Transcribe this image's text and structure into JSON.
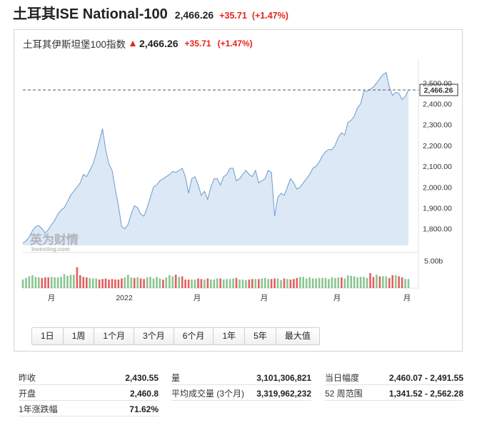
{
  "header": {
    "title": "土耳其ISE National-100",
    "price": "2,466.26",
    "change": "+35.71",
    "change_pct": "(+1.47%)"
  },
  "chart_header": {
    "name": "土耳其伊斯坦堡100指数",
    "price": "2,466.26",
    "change": "+35.71",
    "change_pct": "(+1.47%)"
  },
  "watermark": {
    "cn": "英为财情",
    "en": "Investing.com"
  },
  "colors": {
    "up": "#e8221b",
    "line": "#6b9bd0",
    "area": "#dce8f5",
    "vol_green": "#8ac492",
    "vol_red": "#e15f5f"
  },
  "chart_data": {
    "type": "area",
    "current_value": 2466.26,
    "current_label": "2,466.26",
    "yticks": [
      "2,500.00",
      "2,400.00",
      "2,300.00",
      "2,200.00",
      "2,100.00",
      "2,000.00",
      "1,900.00",
      "1,800.00"
    ],
    "ytick_values": [
      2500,
      2400,
      2300,
      2200,
      2100,
      2000,
      1900,
      1800
    ],
    "ylim": [
      1720,
      2590
    ],
    "xticks": [
      "月",
      "2022",
      "月",
      "月",
      "月",
      "月"
    ],
    "volume_label": "5.00b",
    "volume_label_value": 5.0,
    "values": [
      1730,
      1742,
      1760,
      1790,
      1810,
      1815,
      1800,
      1780,
      1795,
      1820,
      1840,
      1870,
      1890,
      1900,
      1930,
      1960,
      1980,
      2000,
      2020,
      2060,
      2050,
      2080,
      2110,
      2160,
      2220,
      2280,
      2180,
      2110,
      2080,
      1990,
      1910,
      1810,
      1800,
      1820,
      1870,
      1910,
      1900,
      1870,
      1860,
      1900,
      1950,
      2000,
      2010,
      2030,
      2040,
      2050,
      2060,
      2075,
      2070,
      2080,
      2090,
      2050,
      1970,
      2040,
      2050,
      2010,
      1960,
      1980,
      1940,
      2000,
      2040,
      2040,
      2010,
      2050,
      2060,
      2090,
      2090,
      2030,
      2040,
      2060,
      2080,
      2060,
      2050,
      2080,
      2020,
      2030,
      2040,
      2080,
      2070,
      1860,
      1950,
      1970,
      1960,
      2000,
      2040,
      2020,
      1990,
      2000,
      2020,
      2040,
      2060,
      2090,
      2100,
      2120,
      2150,
      2170,
      2180,
      2180,
      2200,
      2240,
      2260,
      2250,
      2310,
      2320,
      2340,
      2380,
      2400,
      2460,
      2460,
      2470,
      2480,
      2500,
      2520,
      2540,
      2550,
      2480,
      2440,
      2455,
      2450,
      2420,
      2435,
      2466
    ],
    "volumes": [
      1.6,
      1.9,
      2.2,
      2.4,
      2.1,
      2.0,
      1.9,
      2.0,
      2.0,
      2.1,
      2.0,
      2.0,
      2.1,
      2.6,
      2.3,
      2.5,
      2.5,
      3.9,
      2.4,
      2.1,
      2.0,
      1.9,
      1.8,
      1.8,
      1.6,
      1.7,
      1.8,
      1.6,
      1.7,
      1.6,
      1.6,
      1.8,
      2.0,
      2.5,
      2.0,
      1.9,
      2.0,
      1.8,
      1.7,
      2.0,
      2.1,
      1.8,
      2.1,
      1.8,
      1.6,
      2.0,
      2.4,
      2.2,
      2.5,
      2.1,
      2.2,
      1.6,
      1.6,
      1.6,
      1.6,
      1.8,
      1.7,
      1.6,
      1.8,
      1.6,
      1.6,
      1.8,
      1.8,
      1.6,
      1.7,
      1.7,
      1.8,
      1.9,
      1.6,
      1.6,
      1.5,
      1.6,
      1.7,
      1.7,
      1.7,
      1.8,
      1.9,
      1.7,
      1.7,
      1.8,
      1.8,
      1.5,
      1.8,
      1.7,
      1.6,
      1.7,
      1.9,
      2.1,
      2.1,
      1.8,
      2.0,
      1.8,
      1.8,
      1.9,
      1.9,
      1.9,
      1.7,
      2.0,
      1.9,
      2.0,
      2.0,
      1.8,
      2.4,
      2.3,
      2.2,
      2.0,
      2.1,
      2.1,
      1.9,
      2.8,
      2.1,
      2.5,
      2.2,
      2.2,
      2.2,
      1.9,
      2.4,
      2.4,
      2.2,
      2.0,
      1.7,
      1.7
    ],
    "volume_red": [
      0,
      0,
      0,
      0,
      0,
      0,
      1,
      1,
      1,
      0,
      0,
      0,
      0,
      0,
      0,
      0,
      0,
      1,
      1,
      1,
      1,
      0,
      0,
      0,
      1,
      1,
      1,
      1,
      1,
      1,
      1,
      1,
      0,
      0,
      0,
      1,
      0,
      1,
      1,
      0,
      0,
      0,
      0,
      0,
      1,
      0,
      0,
      0,
      1,
      0,
      1,
      1,
      1,
      0,
      0,
      1,
      1,
      0,
      1,
      0,
      0,
      0,
      1,
      0,
      0,
      0,
      0,
      1,
      0,
      0,
      0,
      1,
      1,
      0,
      1,
      0,
      0,
      0,
      1,
      1,
      0,
      0,
      1,
      0,
      1,
      1,
      1,
      0,
      0,
      0,
      0,
      0,
      0,
      0,
      0,
      0,
      0,
      0,
      0,
      0,
      1,
      0,
      0,
      0,
      0,
      0,
      0,
      0,
      0,
      1,
      1,
      0,
      1,
      0,
      0,
      1,
      1,
      0,
      1,
      1,
      0,
      0
    ]
  },
  "range_buttons": [
    "1日",
    "1周",
    "1个月",
    "3个月",
    "6个月",
    "1年",
    "5年",
    "最大值"
  ],
  "stats": {
    "col1": [
      {
        "label": "昨收",
        "value": "2,430.55"
      },
      {
        "label": "开盘",
        "value": "2,460.8"
      },
      {
        "label": "1年涨跌幅",
        "value": "71.62%"
      }
    ],
    "col2": [
      {
        "label": "量",
        "value": "3,101,306,821"
      },
      {
        "label": "平均成交量 (3个月)",
        "value": "3,319,962,232"
      }
    ],
    "col3": [
      {
        "label": "当日幅度",
        "value": "2,460.07 - 2,491.55"
      },
      {
        "label": "52 周范围",
        "value": "1,341.52 - 2,562.28"
      }
    ]
  }
}
